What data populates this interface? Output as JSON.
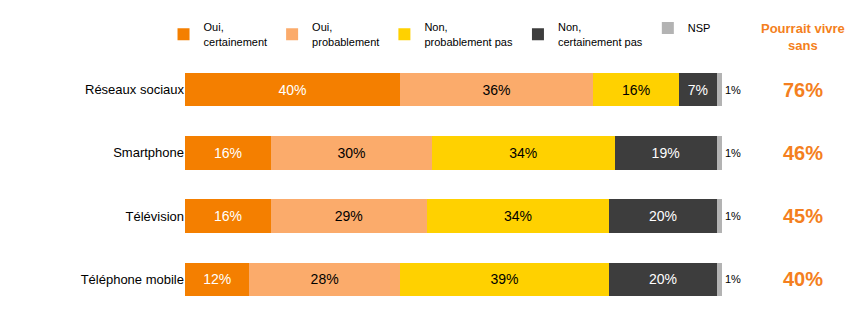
{
  "chart_data": {
    "type": "bar",
    "orientation": "horizontal",
    "stacked": true,
    "data_labels": true,
    "tick_labels": "y",
    "grid": false,
    "legend": "top",
    "categories": [
      "Réseaux sociaux",
      "Smartphone",
      "Télévision",
      "Téléphone mobile"
    ],
    "xlim": [
      0,
      100
    ],
    "series": [
      {
        "name": "Oui, certainement",
        "color": "#f47f00",
        "values": [
          40,
          16,
          16,
          12
        ],
        "value_labels": [
          "40%",
          "16%",
          "16%",
          "12%"
        ]
      },
      {
        "name": "Oui, probablement",
        "color": "#fbab6b",
        "values": [
          36,
          30,
          29,
          28
        ],
        "value_labels": [
          "36%",
          "30%",
          "29%",
          "28%"
        ]
      },
      {
        "name": "Non, probablement pas",
        "color": "#ffd100",
        "values": [
          16,
          34,
          34,
          39
        ],
        "value_labels": [
          "16%",
          "34%",
          "34%",
          "39%"
        ]
      },
      {
        "name": "Non, certainement pas",
        "color": "#3d3d3d",
        "values": [
          7,
          19,
          20,
          20
        ],
        "value_labels": [
          "7%",
          "19%",
          "20%",
          "20%"
        ]
      },
      {
        "name": "NSP",
        "color": "#b3b3b3",
        "values": [
          1,
          1,
          1,
          1
        ],
        "value_labels": [
          "1%",
          "1%",
          "1%",
          "1%"
        ]
      }
    ],
    "summary": {
      "title": "Pourrait vivre sans",
      "color": "#f47f20",
      "values": [
        76,
        46,
        45,
        40
      ],
      "value_labels": [
        "76%",
        "46%",
        "45%",
        "40%"
      ]
    }
  }
}
